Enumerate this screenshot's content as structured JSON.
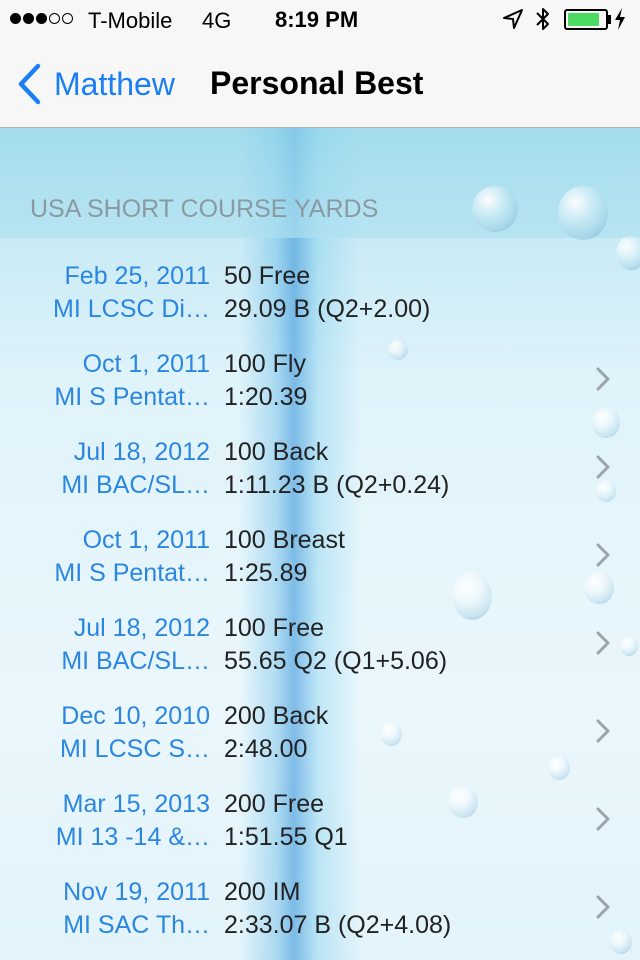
{
  "status_bar": {
    "signal_dots": [
      true,
      true,
      true,
      false,
      false
    ],
    "carrier": "T-Mobile",
    "network": "4G",
    "time": "8:19 PM",
    "icons": [
      "location-arrow-icon",
      "bluetooth-icon",
      "battery-icon",
      "charging-bolt-icon"
    ],
    "battery_level": 0.85,
    "battery_color": "#4cd964"
  },
  "nav": {
    "back_label": "Matthew",
    "title": "Personal Best",
    "accent_color": "#1a7ef5"
  },
  "section": {
    "title": "USA SHORT COURSE YARDS"
  },
  "rows": [
    {
      "date": "Feb 25, 2011",
      "meet": "MI LCSC Di…",
      "event": "50 Free",
      "time": "29.09 B (Q2+2.00)",
      "chevron": false
    },
    {
      "date": "Oct 1, 2011",
      "meet": "MI S Pentat…",
      "event": "100 Fly",
      "time": "1:20.39",
      "chevron": true
    },
    {
      "date": "Jul 18, 2012",
      "meet": "MI BAC/SL…",
      "event": "100 Back",
      "time": "1:11.23 B (Q2+0.24)",
      "chevron": true
    },
    {
      "date": "Oct 1, 2011",
      "meet": "MI S Pentat…",
      "event": "100 Breast",
      "time": "1:25.89",
      "chevron": true
    },
    {
      "date": "Jul 18, 2012",
      "meet": "MI BAC/SL…",
      "event": "100 Free",
      "time": "55.65 Q2 (Q1+5.06)",
      "chevron": true
    },
    {
      "date": "Dec 10, 2010",
      "meet": "MI LCSC S…",
      "event": "200 Back",
      "time": "2:48.00",
      "chevron": true
    },
    {
      "date": "Mar 15, 2013",
      "meet": "MI 13 -14 &…",
      "event": "200 Free",
      "time": "1:51.55 Q1",
      "chevron": true
    },
    {
      "date": "Nov 19, 2011",
      "meet": "MI SAC Th…",
      "event": "200 IM",
      "time": "2:33.07 B (Q2+4.08)",
      "chevron": true
    }
  ]
}
